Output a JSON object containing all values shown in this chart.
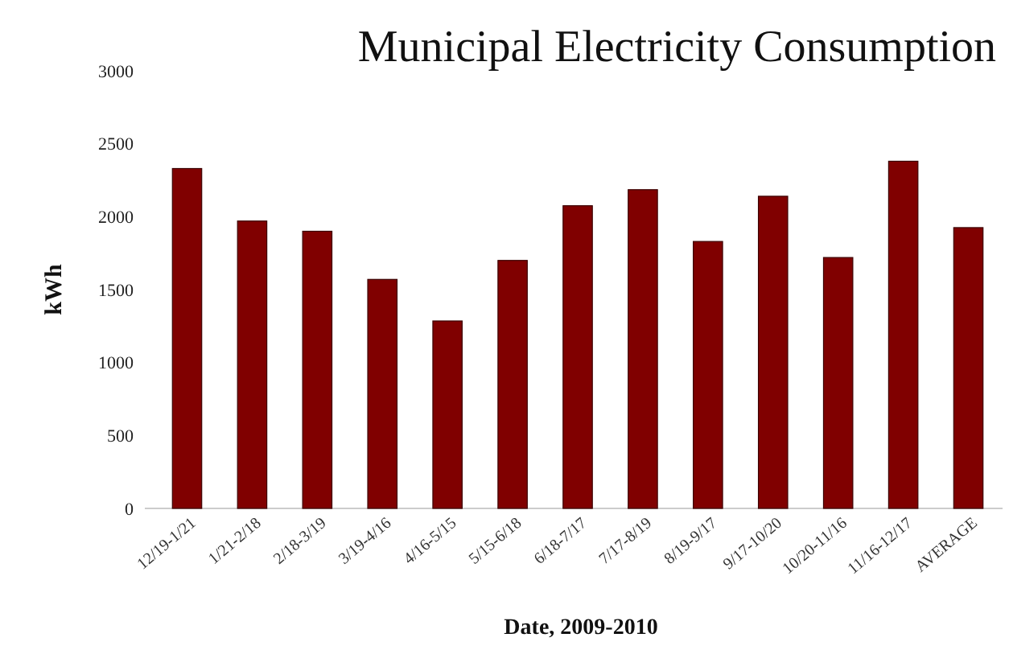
{
  "chart_data": {
    "type": "bar",
    "title": "Municipal Electricity Consumption",
    "xlabel": "Date, 2009-2010",
    "ylabel": "kWh",
    "categories": [
      "12/19-1/21",
      "1/21-2/18",
      "2/18-3/19",
      "3/19-4/16",
      "4/16-5/15",
      "5/15-6/18",
      "6/18-7/17",
      "7/17-8/19",
      "8/19-9/17",
      "9/17-10/20",
      "10/20-11/16",
      "11/16-12/17",
      "AVERAGE"
    ],
    "values": [
      2330,
      1970,
      1900,
      1570,
      1285,
      1700,
      2075,
      2185,
      1830,
      2140,
      1720,
      2380,
      1925
    ],
    "color": "#800000",
    "ylim": [
      0,
      3000
    ],
    "yticks": [
      0,
      500,
      1000,
      1500,
      2000,
      2500,
      3000
    ],
    "grid": false
  }
}
